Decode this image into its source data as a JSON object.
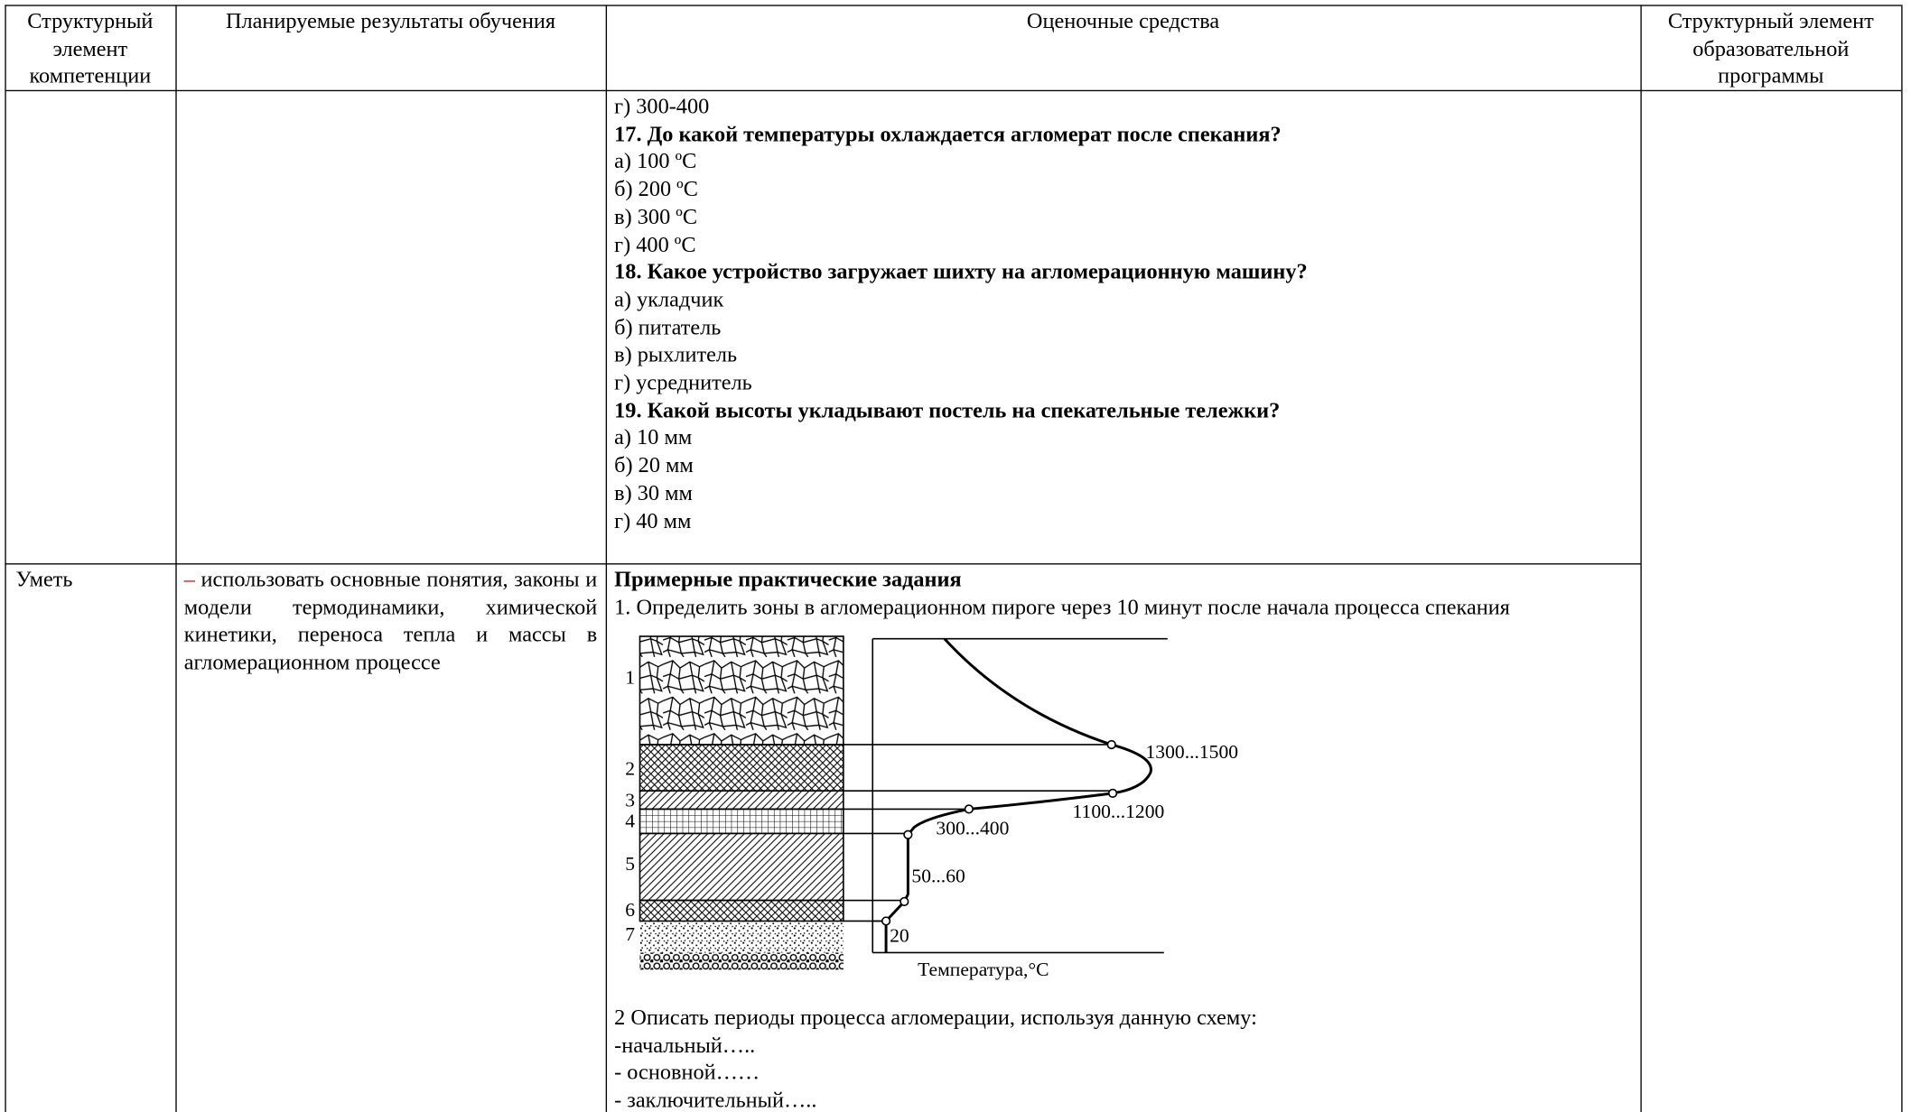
{
  "table": {
    "header": [
      "Структурный элемент компетенции",
      "Планируемые результаты обучения",
      "Оценочные средства",
      "Структурный элемент образовательной программы"
    ],
    "row1": {
      "continued_option": "г) 300-400",
      "questions": [
        {
          "question": "17. До какой температуры охлаждается агломерат после спекания?",
          "options": [
            "а) 100 ºС",
            "б) 200 ºС",
            "в) 300 ºС",
            "г) 400 ºС"
          ]
        },
        {
          "question": "18. Какое устройство загружает шихту на агломерационную машину?",
          "options": [
            "а) укладчик",
            "б) питатель",
            "в) рыхлитель",
            "г) усреднитель"
          ]
        },
        {
          "question": "19. Какой высоты укладывают постель на спекательные тележки?",
          "options": [
            "а) 10 мм",
            "б) 20 мм",
            "в) 30 мм",
            "г) 40 мм"
          ]
        }
      ]
    },
    "row2": {
      "element": "Уметь",
      "outcome": {
        "dash": "–",
        "text": "использовать основные понятия, законы и модели термодинамики, химической кинетики, переноса тепла и массы в агломерационном процессе"
      },
      "tasks": {
        "heading": "Примерные практические задания",
        "task1": "1. Определить зоны в агломерационном пироге через 10 минут после начала процесса спекания",
        "figure": {
          "layer_labels": [
            "1",
            "2",
            "3",
            "4",
            "5",
            "6",
            "7"
          ],
          "temperature_labels": [
            "1300...1500",
            "1100...1200",
            "300...400",
            "50...60",
            "20"
          ],
          "axis_label": "Температура,°С"
        },
        "task2": "2 Описать периоды процесса агломерации, используя данную схему:",
        "periods": [
          "-начальный…..",
          "- основной……",
          "- заключительный….."
        ]
      }
    }
  }
}
